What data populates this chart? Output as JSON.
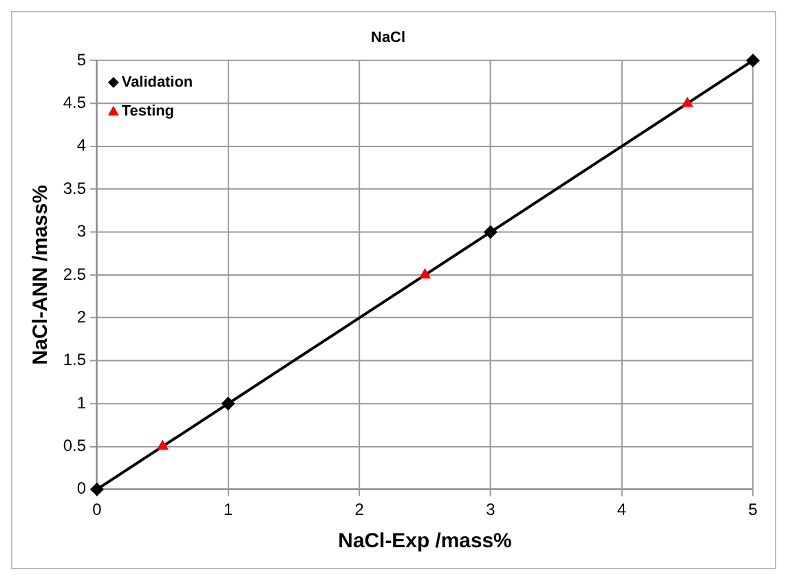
{
  "chart_data": {
    "type": "scatter",
    "title": "NaCl",
    "xlabel": "NaCl-Exp /mass%",
    "ylabel": "NaCl-ANN /mass%",
    "xlim": [
      0,
      5
    ],
    "xticks": [
      0,
      1,
      2,
      3,
      4,
      5
    ],
    "ylim": [
      0,
      5
    ],
    "yticks": [
      0,
      0.5,
      1,
      1.5,
      2,
      2.5,
      3,
      3.5,
      4,
      4.5,
      5
    ],
    "grid": true,
    "legend": "top left",
    "series": [
      {
        "name": "Validation",
        "type": "scatter",
        "marker": "diamond",
        "color": "#000000",
        "x": [
          0,
          1,
          3,
          5
        ],
        "values": [
          0,
          1,
          3,
          5
        ]
      },
      {
        "name": "Testing",
        "type": "scatter",
        "marker": "triangle",
        "color": "#ff0000",
        "x": [
          0.5,
          2.5,
          4.5
        ],
        "values": [
          0.5,
          2.5,
          4.5
        ]
      },
      {
        "type": "line",
        "marker": "none",
        "line_style": "solid",
        "color": "#000000",
        "x": [
          0,
          5
        ],
        "values": [
          0,
          5
        ]
      }
    ]
  }
}
